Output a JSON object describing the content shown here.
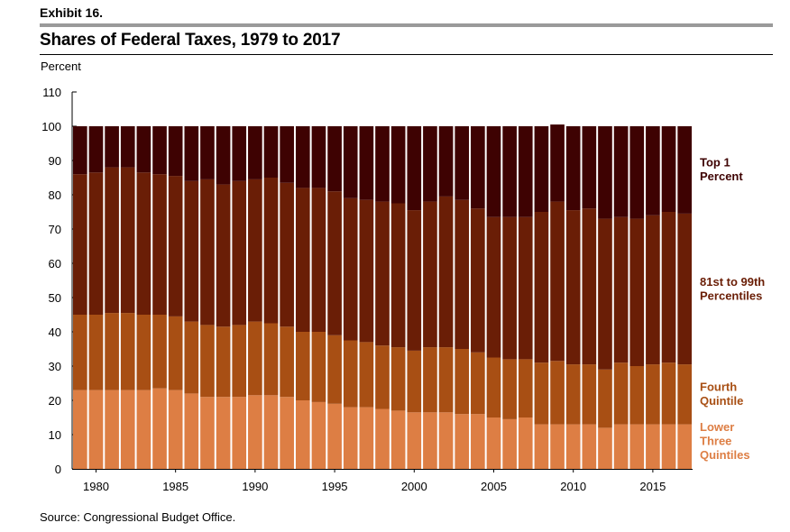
{
  "header": {
    "exhibit": "Exhibit 16.",
    "title": "Shares of Federal Taxes, 1979 to 2017"
  },
  "footer": {
    "source": "Source: Congressional Budget Office."
  },
  "colors": {
    "lower_three": "#dd7e44",
    "fourth": "#a84f14",
    "mid_81_99": "#6a1e06",
    "top1": "#3e0202"
  },
  "chart_data": {
    "type": "bar",
    "stacked": true,
    "title": "Shares of Federal Taxes, 1979 to 2017",
    "ylabel": "Percent",
    "xlabel": "",
    "ylim": [
      0,
      110
    ],
    "yticks": [
      0,
      10,
      20,
      30,
      40,
      50,
      60,
      70,
      80,
      90,
      100,
      110
    ],
    "xtick_labels": [
      "1980",
      "1985",
      "1990",
      "1995",
      "2000",
      "2005",
      "2010",
      "2015"
    ],
    "legend_position": "right (labels beside final bar)",
    "categories": [
      1979,
      1980,
      1981,
      1982,
      1983,
      1984,
      1985,
      1986,
      1987,
      1988,
      1989,
      1990,
      1991,
      1992,
      1993,
      1994,
      1995,
      1996,
      1997,
      1998,
      1999,
      2000,
      2001,
      2002,
      2003,
      2004,
      2005,
      2006,
      2007,
      2008,
      2009,
      2010,
      2011,
      2012,
      2013,
      2014,
      2015,
      2016,
      2017
    ],
    "series": [
      {
        "name": "Lower Three Quintiles",
        "label_lines": [
          "Lower",
          "Three",
          "Quintiles"
        ],
        "color_key": "lower_three",
        "values": [
          23,
          23,
          23,
          23,
          23,
          23.5,
          23,
          22,
          21,
          21,
          21,
          21.5,
          21.5,
          21,
          20,
          19.5,
          19,
          18,
          18,
          17.5,
          17,
          16.5,
          16.5,
          16.5,
          16,
          16,
          15,
          14.5,
          15,
          13,
          13,
          13,
          13,
          12,
          13,
          13,
          13,
          13,
          13
        ]
      },
      {
        "name": "Fourth Quintile",
        "label_lines": [
          "Fourth",
          "Quintile"
        ],
        "color_key": "fourth",
        "values": [
          22,
          22,
          22.5,
          22.5,
          22,
          21.5,
          21.5,
          21,
          21,
          20.5,
          21,
          21.5,
          21,
          20.5,
          20,
          20.5,
          20,
          19.5,
          19,
          18.5,
          18.5,
          18,
          19,
          19,
          19,
          18,
          17.5,
          17.5,
          17,
          18,
          18.5,
          17.5,
          17.5,
          17,
          18,
          17,
          17.5,
          18,
          17.5
        ]
      },
      {
        "name": "81st to 99th Percentiles",
        "label_lines": [
          "81st to 99th",
          "Percentiles"
        ],
        "color_key": "mid_81_99",
        "values": [
          41,
          41.5,
          42.5,
          42.5,
          41.5,
          41,
          41,
          41,
          42.5,
          41.5,
          42,
          41.5,
          42.5,
          42,
          42,
          42,
          42,
          41.5,
          41.5,
          42,
          42,
          41,
          42.5,
          44,
          43.5,
          42,
          41,
          41.5,
          41.5,
          44,
          46.5,
          45,
          45.5,
          44,
          42.5,
          43,
          43.5,
          44,
          44
        ]
      },
      {
        "name": "Top 1 Percent",
        "label_lines": [
          "Top 1",
          "Percent"
        ],
        "color_key": "top1",
        "values": [
          14,
          13.5,
          12,
          12,
          13.5,
          14,
          14.5,
          16,
          15.5,
          17,
          16,
          15.5,
          15,
          16.5,
          18,
          18,
          19,
          21,
          21.5,
          22,
          22.5,
          24.5,
          22,
          20.5,
          21.5,
          24,
          26.5,
          26.5,
          26.5,
          25,
          22.5,
          24.5,
          24,
          27,
          26.5,
          27,
          26,
          25,
          25.5
        ]
      }
    ]
  }
}
